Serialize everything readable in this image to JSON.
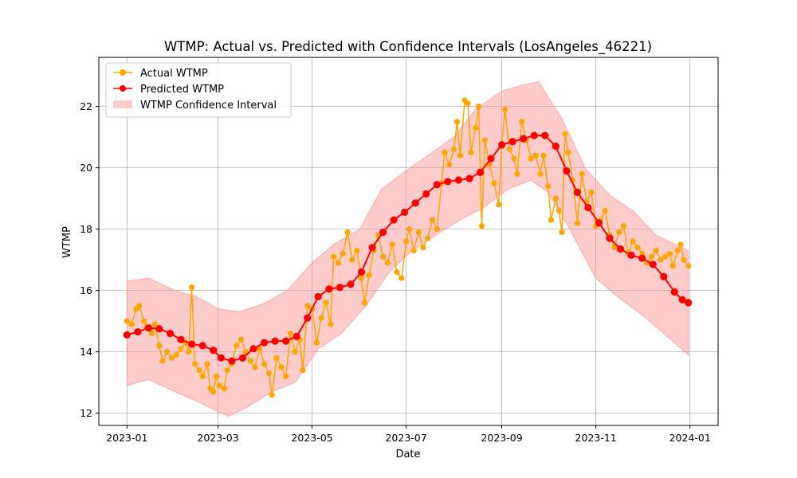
{
  "chart_data": {
    "type": "line",
    "title": "WTMP: Actual vs. Predicted with Confidence Intervals (LosAngeles_46221)",
    "xlabel": "Date",
    "ylabel": "WTMP",
    "x_range": [
      "2023-01-01",
      "2024-01-01"
    ],
    "ylim": [
      11.6,
      23.6
    ],
    "grid": true,
    "legend_position": "top-left",
    "x_ticks": [
      "2023-01",
      "2023-03",
      "2023-05",
      "2023-07",
      "2023-09",
      "2023-11",
      "2024-01"
    ],
    "y_ticks": [
      "12",
      "14",
      "16",
      "18",
      "20",
      "22"
    ],
    "colors": {
      "actual": "#ffa500",
      "predicted": "#ff0000",
      "band": "#ff9999"
    },
    "series": [
      {
        "name": "Actual WTMP",
        "kind": "line-marker",
        "points": [
          [
            "2023-01-01",
            15.0
          ],
          [
            "2023-01-04",
            14.9
          ],
          [
            "2023-01-07",
            15.4
          ],
          [
            "2023-01-09",
            15.5
          ],
          [
            "2023-01-12",
            15.0
          ],
          [
            "2023-01-14",
            14.8
          ],
          [
            "2023-01-17",
            14.6
          ],
          [
            "2023-01-19",
            14.9
          ],
          [
            "2023-01-22",
            14.2
          ],
          [
            "2023-01-24",
            13.7
          ],
          [
            "2023-01-27",
            14.0
          ],
          [
            "2023-01-30",
            13.8
          ],
          [
            "2023-02-02",
            13.9
          ],
          [
            "2023-02-05",
            14.1
          ],
          [
            "2023-02-08",
            14.3
          ],
          [
            "2023-02-10",
            14.0
          ],
          [
            "2023-02-12",
            16.1
          ],
          [
            "2023-02-14",
            13.6
          ],
          [
            "2023-02-17",
            13.4
          ],
          [
            "2023-02-19",
            13.2
          ],
          [
            "2023-02-22",
            13.6
          ],
          [
            "2023-02-24",
            12.8
          ],
          [
            "2023-02-26",
            12.7
          ],
          [
            "2023-02-28",
            13.2
          ],
          [
            "2023-03-02",
            12.9
          ],
          [
            "2023-03-05",
            12.8
          ],
          [
            "2023-03-07",
            13.4
          ],
          [
            "2023-03-10",
            13.6
          ],
          [
            "2023-03-13",
            14.2
          ],
          [
            "2023-03-16",
            14.4
          ],
          [
            "2023-03-19",
            14.0
          ],
          [
            "2023-03-22",
            13.7
          ],
          [
            "2023-03-25",
            13.5
          ],
          [
            "2023-03-28",
            14.1
          ],
          [
            "2023-03-31",
            13.6
          ],
          [
            "2023-04-03",
            13.3
          ],
          [
            "2023-04-05",
            12.6
          ],
          [
            "2023-04-08",
            13.8
          ],
          [
            "2023-04-11",
            13.5
          ],
          [
            "2023-04-14",
            13.2
          ],
          [
            "2023-04-17",
            14.6
          ],
          [
            "2023-04-20",
            14.0
          ],
          [
            "2023-04-23",
            14.4
          ],
          [
            "2023-04-25",
            13.4
          ],
          [
            "2023-04-28",
            15.5
          ],
          [
            "2023-05-01",
            15.4
          ],
          [
            "2023-05-04",
            14.3
          ],
          [
            "2023-05-07",
            15.1
          ],
          [
            "2023-05-10",
            15.6
          ],
          [
            "2023-05-13",
            14.9
          ],
          [
            "2023-05-15",
            17.1
          ],
          [
            "2023-05-18",
            16.9
          ],
          [
            "2023-05-21",
            17.2
          ],
          [
            "2023-05-24",
            17.9
          ],
          [
            "2023-05-27",
            17.0
          ],
          [
            "2023-05-30",
            17.3
          ],
          [
            "2023-06-02",
            16.4
          ],
          [
            "2023-06-04",
            15.6
          ],
          [
            "2023-06-07",
            16.5
          ],
          [
            "2023-06-10",
            17.3
          ],
          [
            "2023-06-13",
            17.8
          ],
          [
            "2023-06-16",
            17.1
          ],
          [
            "2023-06-19",
            16.9
          ],
          [
            "2023-06-22",
            17.5
          ],
          [
            "2023-06-25",
            16.6
          ],
          [
            "2023-06-28",
            16.4
          ],
          [
            "2023-07-01",
            17.6
          ],
          [
            "2023-07-03",
            18.0
          ],
          [
            "2023-07-06",
            17.3
          ],
          [
            "2023-07-09",
            17.9
          ],
          [
            "2023-07-12",
            17.4
          ],
          [
            "2023-07-15",
            17.7
          ],
          [
            "2023-07-18",
            18.3
          ],
          [
            "2023-07-21",
            18.0
          ],
          [
            "2023-07-24",
            19.5
          ],
          [
            "2023-07-26",
            20.5
          ],
          [
            "2023-07-29",
            20.1
          ],
          [
            "2023-08-01",
            20.6
          ],
          [
            "2023-08-03",
            21.5
          ],
          [
            "2023-08-05",
            20.4
          ],
          [
            "2023-08-08",
            22.2
          ],
          [
            "2023-08-10",
            22.1
          ],
          [
            "2023-08-12",
            20.5
          ],
          [
            "2023-08-15",
            21.3
          ],
          [
            "2023-08-17",
            22.0
          ],
          [
            "2023-08-19",
            18.1
          ],
          [
            "2023-08-21",
            20.9
          ],
          [
            "2023-08-24",
            20.1
          ],
          [
            "2023-08-27",
            19.5
          ],
          [
            "2023-08-30",
            18.8
          ],
          [
            "2023-09-01",
            20.7
          ],
          [
            "2023-09-03",
            21.9
          ],
          [
            "2023-09-06",
            20.6
          ],
          [
            "2023-09-09",
            20.3
          ],
          [
            "2023-09-11",
            19.8
          ],
          [
            "2023-09-14",
            21.5
          ],
          [
            "2023-09-17",
            20.9
          ],
          [
            "2023-09-20",
            20.3
          ],
          [
            "2023-09-23",
            20.4
          ],
          [
            "2023-09-26",
            19.8
          ],
          [
            "2023-09-28",
            20.4
          ],
          [
            "2023-10-01",
            19.4
          ],
          [
            "2023-10-03",
            18.3
          ],
          [
            "2023-10-06",
            19.0
          ],
          [
            "2023-10-08",
            18.6
          ],
          [
            "2023-10-10",
            17.9
          ],
          [
            "2023-10-12",
            21.1
          ],
          [
            "2023-10-14",
            20.5
          ],
          [
            "2023-10-17",
            19.6
          ],
          [
            "2023-10-20",
            18.2
          ],
          [
            "2023-10-23",
            19.8
          ],
          [
            "2023-10-26",
            18.9
          ],
          [
            "2023-10-29",
            19.2
          ],
          [
            "2023-11-01",
            18.1
          ],
          [
            "2023-11-04",
            18.3
          ],
          [
            "2023-11-07",
            18.6
          ],
          [
            "2023-11-10",
            17.8
          ],
          [
            "2023-11-13",
            17.4
          ],
          [
            "2023-11-16",
            17.9
          ],
          [
            "2023-11-19",
            18.1
          ],
          [
            "2023-11-22",
            17.2
          ],
          [
            "2023-11-25",
            17.6
          ],
          [
            "2023-11-28",
            17.4
          ],
          [
            "2023-12-01",
            17.2
          ],
          [
            "2023-12-04",
            16.9
          ],
          [
            "2023-12-07",
            17.1
          ],
          [
            "2023-12-10",
            17.3
          ],
          [
            "2023-12-13",
            17.0
          ],
          [
            "2023-12-16",
            17.1
          ],
          [
            "2023-12-19",
            17.2
          ],
          [
            "2023-12-21",
            16.8
          ],
          [
            "2023-12-24",
            17.3
          ],
          [
            "2023-12-26",
            17.5
          ],
          [
            "2023-12-28",
            17.0
          ],
          [
            "2023-12-31",
            16.8
          ]
        ]
      },
      {
        "name": "Predicted WTMP",
        "kind": "line-marker",
        "points": [
          [
            "2023-01-01",
            14.55
          ],
          [
            "2023-01-08",
            14.65
          ],
          [
            "2023-01-15",
            14.78
          ],
          [
            "2023-01-22",
            14.75
          ],
          [
            "2023-01-29",
            14.6
          ],
          [
            "2023-02-05",
            14.4
          ],
          [
            "2023-02-12",
            14.25
          ],
          [
            "2023-02-19",
            14.2
          ],
          [
            "2023-02-26",
            14.05
          ],
          [
            "2023-03-03",
            13.8
          ],
          [
            "2023-03-10",
            13.7
          ],
          [
            "2023-03-17",
            13.8
          ],
          [
            "2023-03-24",
            14.1
          ],
          [
            "2023-03-31",
            14.3
          ],
          [
            "2023-04-07",
            14.35
          ],
          [
            "2023-04-14",
            14.35
          ],
          [
            "2023-04-21",
            14.5
          ],
          [
            "2023-04-28",
            15.1
          ],
          [
            "2023-05-05",
            15.8
          ],
          [
            "2023-05-12",
            16.05
          ],
          [
            "2023-05-19",
            16.1
          ],
          [
            "2023-05-26",
            16.2
          ],
          [
            "2023-06-02",
            16.6
          ],
          [
            "2023-06-09",
            17.4
          ],
          [
            "2023-06-16",
            17.9
          ],
          [
            "2023-06-23",
            18.3
          ],
          [
            "2023-06-30",
            18.55
          ],
          [
            "2023-07-07",
            18.85
          ],
          [
            "2023-07-14",
            19.15
          ],
          [
            "2023-07-21",
            19.45
          ],
          [
            "2023-07-28",
            19.55
          ],
          [
            "2023-08-04",
            19.6
          ],
          [
            "2023-08-11",
            19.65
          ],
          [
            "2023-08-18",
            19.85
          ],
          [
            "2023-08-25",
            20.3
          ],
          [
            "2023-09-01",
            20.75
          ],
          [
            "2023-09-08",
            20.85
          ],
          [
            "2023-09-15",
            20.95
          ],
          [
            "2023-09-22",
            21.05
          ],
          [
            "2023-09-29",
            21.05
          ],
          [
            "2023-10-06",
            20.7
          ],
          [
            "2023-10-13",
            19.9
          ],
          [
            "2023-10-20",
            19.2
          ],
          [
            "2023-10-27",
            18.7
          ],
          [
            "2023-11-03",
            18.2
          ],
          [
            "2023-11-10",
            17.7
          ],
          [
            "2023-11-17",
            17.35
          ],
          [
            "2023-11-24",
            17.15
          ],
          [
            "2023-12-01",
            17.05
          ],
          [
            "2023-12-08",
            16.85
          ],
          [
            "2023-12-15",
            16.45
          ],
          [
            "2023-12-22",
            15.95
          ],
          [
            "2023-12-27",
            15.7
          ],
          [
            "2023-12-31",
            15.6
          ]
        ]
      }
    ],
    "band": {
      "name": "WTMP Confidence Interval",
      "lower": [
        [
          "2023-01-01",
          12.9
        ],
        [
          "2023-01-15",
          13.1
        ],
        [
          "2023-02-01",
          12.7
        ],
        [
          "2023-02-15",
          12.4
        ],
        [
          "2023-03-01",
          12.05
        ],
        [
          "2023-03-08",
          11.9
        ],
        [
          "2023-03-20",
          12.2
        ],
        [
          "2023-04-05",
          12.7
        ],
        [
          "2023-04-20",
          13.0
        ],
        [
          "2023-05-05",
          14.1
        ],
        [
          "2023-05-20",
          14.6
        ],
        [
          "2023-06-05",
          15.5
        ],
        [
          "2023-06-20",
          16.6
        ],
        [
          "2023-07-05",
          17.3
        ],
        [
          "2023-07-20",
          17.8
        ],
        [
          "2023-08-05",
          18.3
        ],
        [
          "2023-08-20",
          18.7
        ],
        [
          "2023-09-05",
          19.3
        ],
        [
          "2023-09-20",
          19.6
        ],
        [
          "2023-10-01",
          19.2
        ],
        [
          "2023-10-15",
          18.0
        ],
        [
          "2023-11-01",
          16.4
        ],
        [
          "2023-11-15",
          15.8
        ],
        [
          "2023-12-01",
          15.2
        ],
        [
          "2023-12-15",
          14.6
        ],
        [
          "2023-12-31",
          13.9
        ]
      ],
      "upper": [
        [
          "2023-01-01",
          16.3
        ],
        [
          "2023-01-15",
          16.4
        ],
        [
          "2023-02-01",
          16.0
        ],
        [
          "2023-02-15",
          15.8
        ],
        [
          "2023-03-01",
          15.4
        ],
        [
          "2023-03-15",
          15.3
        ],
        [
          "2023-04-01",
          15.6
        ],
        [
          "2023-04-15",
          16.0
        ],
        [
          "2023-05-01",
          16.9
        ],
        [
          "2023-05-15",
          17.5
        ],
        [
          "2023-06-01",
          18.0
        ],
        [
          "2023-06-15",
          19.3
        ],
        [
          "2023-07-01",
          19.9
        ],
        [
          "2023-07-15",
          20.4
        ],
        [
          "2023-08-01",
          21.0
        ],
        [
          "2023-08-15",
          21.9
        ],
        [
          "2023-09-01",
          22.5
        ],
        [
          "2023-09-15",
          22.7
        ],
        [
          "2023-09-25",
          22.8
        ],
        [
          "2023-10-10",
          21.6
        ],
        [
          "2023-10-25",
          20.0
        ],
        [
          "2023-11-10",
          19.1
        ],
        [
          "2023-11-25",
          18.6
        ],
        [
          "2023-12-10",
          17.8
        ],
        [
          "2023-12-31",
          17.3
        ]
      ]
    }
  }
}
